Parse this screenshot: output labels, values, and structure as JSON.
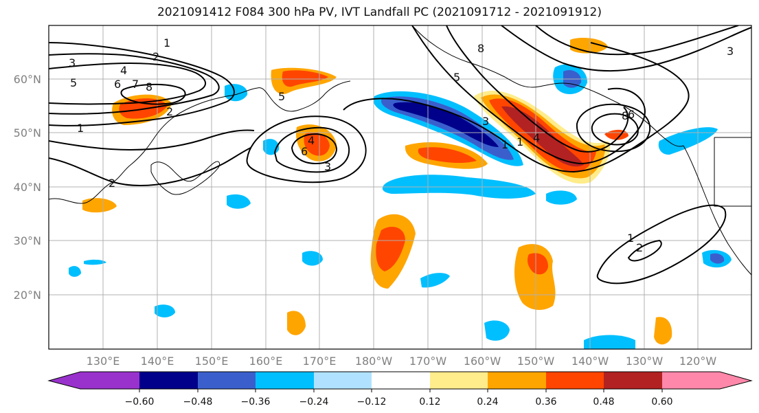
{
  "title": "2021091412 F084 300 hPa PV, IVT Landfall PC (2021091712 - 2021091912)",
  "axes": {
    "lat_labels": [
      "20°N",
      "30°N",
      "40°N",
      "50°N",
      "60°N"
    ],
    "lon_labels": [
      "130°E",
      "140°E",
      "150°E",
      "160°E",
      "170°E",
      "180°W",
      "170°W",
      "160°W",
      "150°W",
      "140°W",
      "130°W",
      "120°W"
    ]
  },
  "colorbar": {
    "ticks": [
      "−0.60",
      "−0.48",
      "−0.36",
      "−0.24",
      "−0.12",
      "0.12",
      "0.24",
      "0.36",
      "0.48",
      "0.60"
    ],
    "colors": [
      "#9932cc",
      "#00008b",
      "#3a5fcd",
      "#00bfff",
      "#b0e2ff",
      "#ffffff",
      "#ffec8b",
      "#ffa500",
      "#ff4500",
      "#b22222",
      "#ff88aa"
    ]
  },
  "contour_labels": [
    "1",
    "2",
    "3",
    "4",
    "5",
    "6",
    "7",
    "8",
    "1",
    "2",
    "3",
    "4",
    "5",
    "6",
    "8",
    "1",
    "1",
    "2",
    "3",
    "8",
    "3",
    "4",
    "5",
    "6",
    "1",
    "2"
  ],
  "fill_colors": {
    "pos_light": "#ffec8b",
    "pos_mid": "#ffa500",
    "pos_strong": "#ff4500",
    "pos_max": "#b22222",
    "neg_light": "#b0e2ff",
    "neg_mid": "#00bfff",
    "neg_strong": "#3a5fcd",
    "neg_max": "#00008b"
  }
}
